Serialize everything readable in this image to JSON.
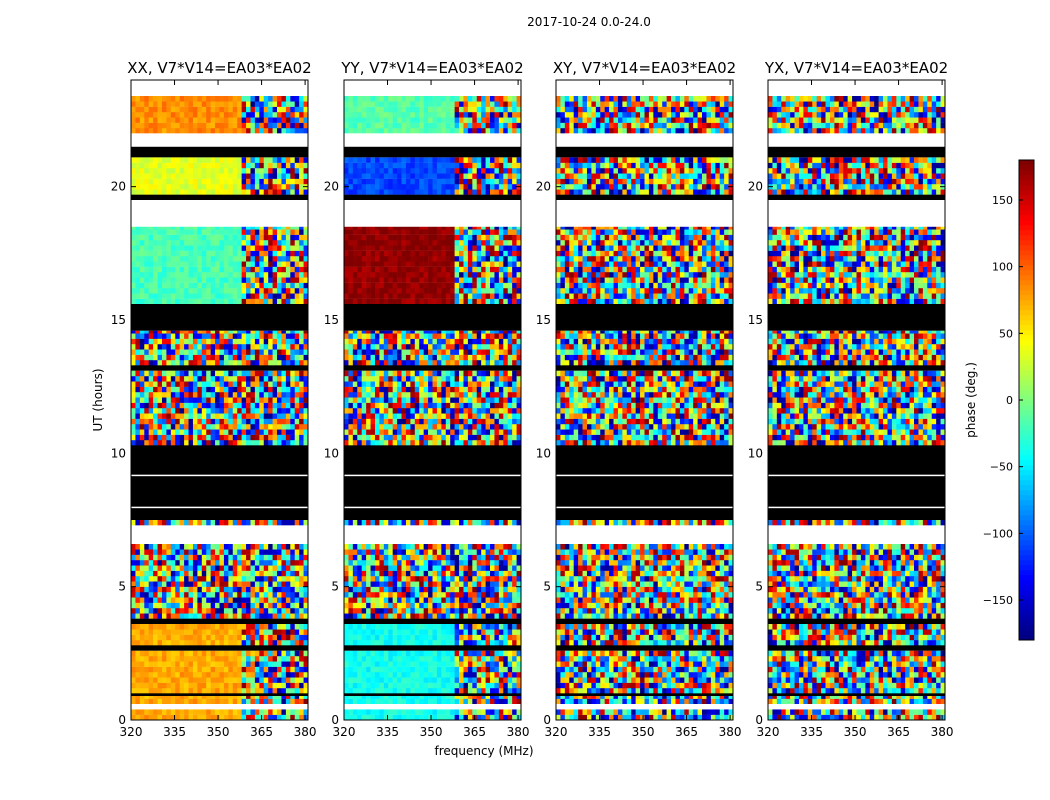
{
  "chart_data": {
    "type": "heatmap",
    "suptitle": "2017-10-24 0.0-24.0",
    "xlabel": "frequency (MHz)",
    "ylabel": "UT (hours)",
    "xlim": [
      320,
      381
    ],
    "ylim": [
      0,
      24
    ],
    "xticks": [
      320,
      335,
      350,
      365,
      380
    ],
    "yticks": [
      0,
      5,
      10,
      15,
      20
    ],
    "panels": [
      {
        "title": "XX, V7*V14=EA03*EA02",
        "base": "warm"
      },
      {
        "title": "YY, V7*V14=EA03*EA02",
        "base": "cool"
      },
      {
        "title": "XY, V7*V14=EA03*EA02",
        "base": "noise"
      },
      {
        "title": "YX, V7*V14=EA03*EA02",
        "base": "noise"
      }
    ],
    "colorbar": {
      "label": "phase (deg.)",
      "range": [
        -180,
        180
      ],
      "ticks": [
        150,
        100,
        50,
        0,
        -50,
        -100,
        -150
      ],
      "tick_labels": [
        "150",
        "100",
        "50",
        "0",
        "−50",
        "−100",
        "−150"
      ],
      "colormap": "jet"
    },
    "flag_color_black": "#000000",
    "gap_color_white": "#ffffff"
  }
}
